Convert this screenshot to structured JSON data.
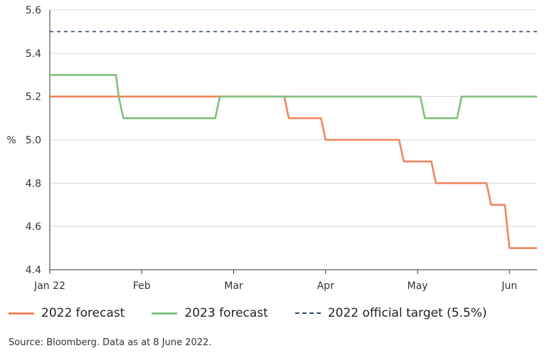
{
  "chart_data": {
    "type": "line",
    "ylabel": "%",
    "ylim": [
      4.4,
      5.6
    ],
    "yticks": [
      "4.4",
      "4.6",
      "4.8",
      "5.0",
      "5.2",
      "5.4",
      "5.6"
    ],
    "xlim": [
      0,
      5.3
    ],
    "xticks": [
      {
        "label": "Jan 22",
        "x": 0
      },
      {
        "label": "Feb",
        "x": 1
      },
      {
        "label": "Mar",
        "x": 2
      },
      {
        "label": "Apr",
        "x": 3
      },
      {
        "label": "May",
        "x": 4
      },
      {
        "label": "Jun",
        "x": 5
      }
    ],
    "grid": "horizontal",
    "legend_position": "bottom",
    "series": [
      {
        "name": "2022 forecast",
        "color": "#f08560",
        "style": "solid",
        "x": [
          0,
          2.55,
          2.6,
          2.95,
          3.0,
          3.8,
          3.85,
          4.15,
          4.2,
          4.75,
          4.8,
          4.95,
          5.0,
          5.3
        ],
        "y": [
          5.2,
          5.2,
          5.1,
          5.1,
          5.0,
          5.0,
          4.9,
          4.9,
          4.8,
          4.8,
          4.7,
          4.7,
          4.5,
          4.5
        ]
      },
      {
        "name": "2023 forecast",
        "color": "#7fbf7f",
        "style": "solid",
        "x": [
          0,
          0.72,
          0.75,
          0.8,
          1.8,
          1.85,
          4.03,
          4.08,
          4.43,
          4.48,
          5.3
        ],
        "y": [
          5.3,
          5.3,
          5.2,
          5.1,
          5.1,
          5.2,
          5.2,
          5.1,
          5.1,
          5.2,
          5.2
        ]
      },
      {
        "name": "2022 official target (5.5%)",
        "color": "#2e4a6b",
        "style": "dashed",
        "x": [
          0,
          5.3
        ],
        "y": [
          5.5,
          5.5
        ]
      }
    ]
  },
  "source_note": "Source: Bloomberg. Data as at 8 June 2022."
}
